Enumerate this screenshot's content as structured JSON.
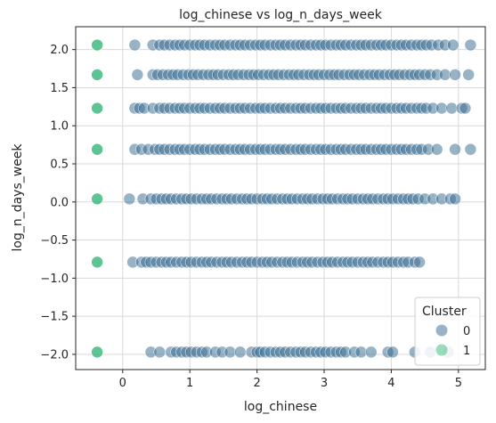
{
  "chart_data": {
    "type": "scatter",
    "title": "log_chinese vs log_n_days_week",
    "xlabel": "log_chinese",
    "ylabel": "log_n_days_week",
    "xlim": [
      -0.7,
      5.4
    ],
    "ylim": [
      -2.2,
      2.3
    ],
    "xticks": [
      "0",
      "1",
      "2",
      "3",
      "4",
      "5"
    ],
    "yticks": [
      "2.0",
      "1.5",
      "1.0",
      "0.5",
      "0.0",
      "−0.5",
      "−1.0",
      "−1.5",
      "−2.0"
    ],
    "grid": true,
    "legend_title": "Cluster",
    "legend_position": "lower-right",
    "series": [
      {
        "name": "0",
        "color": "#31688e",
        "opacity": 0.5,
        "rows": [
          {
            "y": 2.06,
            "x": [
              0.18,
              0.45,
              0.55,
              0.62,
              0.7,
              0.78,
              0.85,
              0.92,
              1.0,
              1.08,
              1.15,
              1.22,
              1.3,
              1.38,
              1.45,
              1.52,
              1.6,
              1.68,
              1.75,
              1.82,
              1.9,
              1.98,
              2.05,
              2.12,
              2.2,
              2.28,
              2.35,
              2.42,
              2.5,
              2.58,
              2.65,
              2.72,
              2.8,
              2.88,
              2.95,
              3.02,
              3.1,
              3.18,
              3.25,
              3.32,
              3.4,
              3.48,
              3.55,
              3.62,
              3.7,
              3.78,
              3.85,
              3.92,
              4.0,
              4.08,
              4.15,
              4.22,
              4.3,
              4.38,
              4.45,
              4.52,
              4.6,
              4.7,
              4.8,
              4.92,
              5.18
            ]
          },
          {
            "y": 1.67,
            "x": [
              0.22,
              0.45,
              0.52,
              0.6,
              0.68,
              0.75,
              0.82,
              0.9,
              0.98,
              1.05,
              1.12,
              1.2,
              1.28,
              1.35,
              1.42,
              1.5,
              1.58,
              1.65,
              1.72,
              1.8,
              1.88,
              1.95,
              2.02,
              2.1,
              2.18,
              2.25,
              2.32,
              2.4,
              2.48,
              2.55,
              2.62,
              2.7,
              2.78,
              2.85,
              2.92,
              3.0,
              3.08,
              3.15,
              3.22,
              3.3,
              3.38,
              3.45,
              3.52,
              3.6,
              3.68,
              3.75,
              3.82,
              3.9,
              3.98,
              4.05,
              4.12,
              4.2,
              4.28,
              4.35,
              4.42,
              4.5,
              4.58,
              4.68,
              4.8,
              4.95,
              5.15
            ]
          },
          {
            "y": 1.23,
            "x": [
              0.18,
              0.25,
              0.32,
              0.45,
              0.55,
              0.62,
              0.7,
              0.78,
              0.85,
              0.92,
              1.0,
              1.08,
              1.15,
              1.22,
              1.3,
              1.38,
              1.45,
              1.52,
              1.6,
              1.68,
              1.75,
              1.82,
              1.9,
              1.98,
              2.05,
              2.12,
              2.2,
              2.28,
              2.35,
              2.42,
              2.5,
              2.58,
              2.65,
              2.72,
              2.8,
              2.88,
              2.95,
              3.02,
              3.1,
              3.18,
              3.25,
              3.32,
              3.4,
              3.48,
              3.55,
              3.62,
              3.7,
              3.78,
              3.85,
              3.92,
              4.0,
              4.08,
              4.15,
              4.22,
              4.3,
              4.38,
              4.45,
              4.52,
              4.62,
              4.75,
              4.9,
              5.05,
              5.1
            ]
          },
          {
            "y": 0.69,
            "x": [
              0.18,
              0.28,
              0.38,
              0.48,
              0.55,
              0.62,
              0.7,
              0.78,
              0.85,
              0.92,
              1.0,
              1.08,
              1.15,
              1.22,
              1.3,
              1.38,
              1.45,
              1.52,
              1.6,
              1.68,
              1.75,
              1.82,
              1.9,
              1.98,
              2.05,
              2.12,
              2.2,
              2.28,
              2.35,
              2.42,
              2.5,
              2.58,
              2.65,
              2.72,
              2.8,
              2.88,
              2.95,
              3.02,
              3.1,
              3.18,
              3.25,
              3.32,
              3.4,
              3.48,
              3.55,
              3.62,
              3.7,
              3.78,
              3.85,
              3.92,
              4.0,
              4.08,
              4.15,
              4.22,
              4.3,
              4.38,
              4.45,
              4.55,
              4.68,
              4.95,
              5.18
            ]
          },
          {
            "y": 0.04,
            "x": [
              0.1,
              0.3,
              0.42,
              0.5,
              0.58,
              0.65,
              0.72,
              0.8,
              0.88,
              0.95,
              1.02,
              1.1,
              1.18,
              1.25,
              1.32,
              1.4,
              1.48,
              1.55,
              1.62,
              1.7,
              1.78,
              1.85,
              1.92,
              2.0,
              2.08,
              2.15,
              2.22,
              2.3,
              2.38,
              2.45,
              2.52,
              2.6,
              2.68,
              2.75,
              2.82,
              2.9,
              2.98,
              3.05,
              3.12,
              3.2,
              3.28,
              3.35,
              3.42,
              3.5,
              3.58,
              3.65,
              3.72,
              3.8,
              3.88,
              3.95,
              4.02,
              4.1,
              4.18,
              4.25,
              4.32,
              4.4,
              4.5,
              4.62,
              4.75,
              4.88,
              4.95
            ]
          },
          {
            "y": -0.79,
            "x": [
              0.15,
              0.28,
              0.35,
              0.42,
              0.5,
              0.58,
              0.65,
              0.72,
              0.8,
              0.88,
              0.95,
              1.02,
              1.1,
              1.18,
              1.25,
              1.32,
              1.4,
              1.48,
              1.55,
              1.62,
              1.7,
              1.78,
              1.85,
              1.92,
              2.0,
              2.08,
              2.15,
              2.22,
              2.3,
              2.38,
              2.45,
              2.52,
              2.6,
              2.68,
              2.75,
              2.82,
              2.9,
              2.98,
              3.05,
              3.12,
              3.2,
              3.28,
              3.35,
              3.42,
              3.5,
              3.58,
              3.65,
              3.72,
              3.8,
              3.88,
              3.95,
              4.02,
              4.1,
              4.18,
              4.25,
              4.35,
              4.42
            ]
          },
          {
            "y": -1.97,
            "x": [
              0.42,
              0.55,
              0.72,
              0.8,
              0.88,
              0.95,
              1.02,
              1.1,
              1.18,
              1.25,
              1.38,
              1.48,
              1.6,
              1.75,
              1.92,
              2.0,
              2.05,
              2.12,
              2.2,
              2.28,
              2.35,
              2.42,
              2.5,
              2.58,
              2.65,
              2.72,
              2.8,
              2.88,
              2.95,
              3.02,
              3.1,
              3.18,
              3.25,
              3.32,
              3.45,
              3.55,
              3.7,
              3.95,
              4.02,
              4.35,
              4.58,
              4.85
            ]
          }
        ]
      },
      {
        "name": "1",
        "color": "#35b779",
        "opacity": 0.8,
        "points": [
          [
            -0.38,
            2.06
          ],
          [
            -0.38,
            1.67
          ],
          [
            -0.38,
            1.23
          ],
          [
            -0.38,
            0.69
          ],
          [
            -0.38,
            0.04
          ],
          [
            -0.38,
            -0.79
          ],
          [
            -0.38,
            -1.97
          ]
        ]
      }
    ]
  }
}
